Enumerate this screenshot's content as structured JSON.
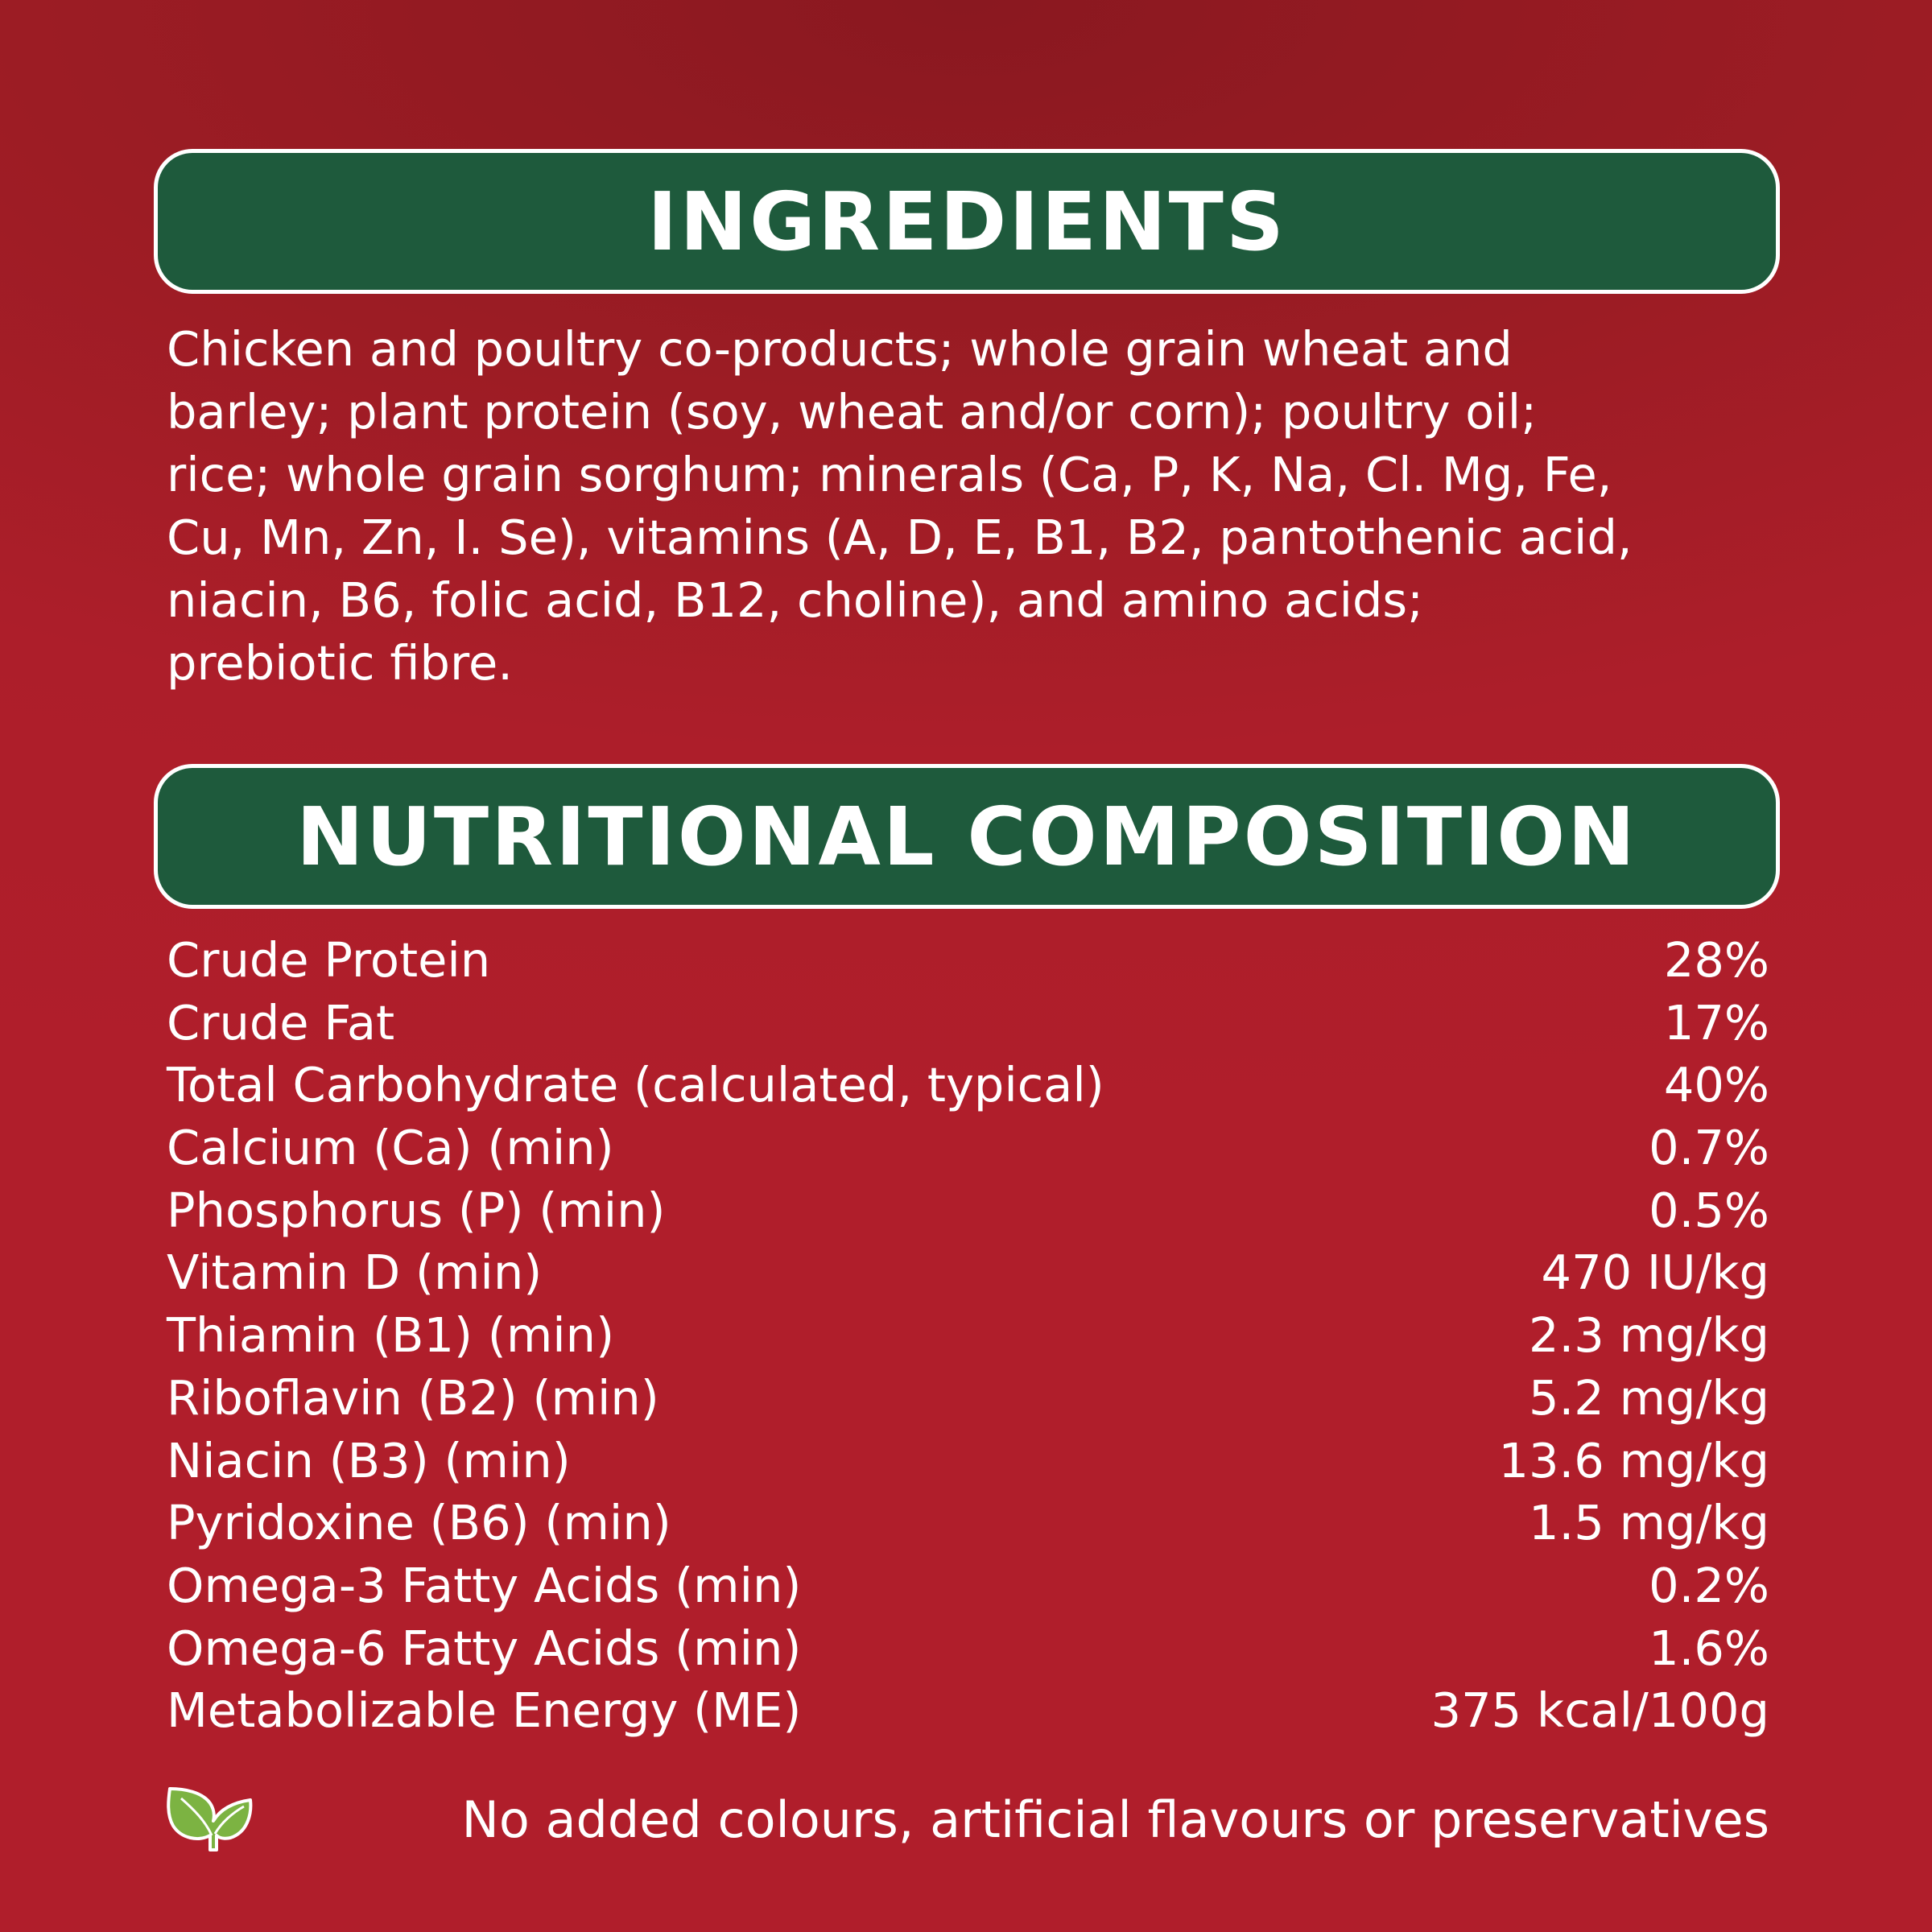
{
  "ingredients": {
    "title": "INGREDIENTS",
    "lines": [
      "Chicken and poultry co-products; whole grain wheat and",
      "barley; plant protein (soy, wheat and/or corn); poultry oil;",
      "rice; whole grain sorghum; minerals (Ca, P, K, Na, Cl. Mg, Fe,",
      "Cu, Mn, Zn, I. Se), vitamins (A, D, E, B1, B2, pantothenic acid,",
      "niacin, B6, folic acid, B12, choline), and amino acids;",
      "prebiotic fibre."
    ]
  },
  "nutrition": {
    "title": "NUTRITIONAL COMPOSITION",
    "rows": [
      {
        "label": "Crude Protein",
        "value": "28%"
      },
      {
        "label": "Crude Fat",
        "value": "17%"
      },
      {
        "label": "Total Carbohydrate (calculated, typical)",
        "value": "40%"
      },
      {
        "label": "Calcium (Ca) (min)",
        "value": "0.7%"
      },
      {
        "label": "Phosphorus (P) (min)",
        "value": "0.5%"
      },
      {
        "label": "Vitamin D (min)",
        "value": "470 IU/kg"
      },
      {
        "label": "Thiamin (B1) (min)",
        "value": "2.3 mg/kg"
      },
      {
        "label": "Riboflavin (B2) (min)",
        "value": "5.2 mg/kg"
      },
      {
        "label": "Niacin (B3) (min)",
        "value": "13.6 mg/kg"
      },
      {
        "label": "Pyridoxine (B6) (min)",
        "value": "1.5 mg/kg"
      },
      {
        "label": "Omega-3 Fatty Acids (min)",
        "value": "0.2%"
      },
      {
        "label": "Omega-6 Fatty Acids (min)",
        "value": "1.6%"
      },
      {
        "label": "Metabolizable Energy (ME)",
        "value": "375 kcal/100g"
      }
    ]
  },
  "footer": {
    "icon": "leaf-icon",
    "text": "No added colours, artificial flavours or preservatives"
  },
  "colors": {
    "background": "#b01e2b",
    "header": "#1e5a3c",
    "leaf": "#7cb342"
  }
}
